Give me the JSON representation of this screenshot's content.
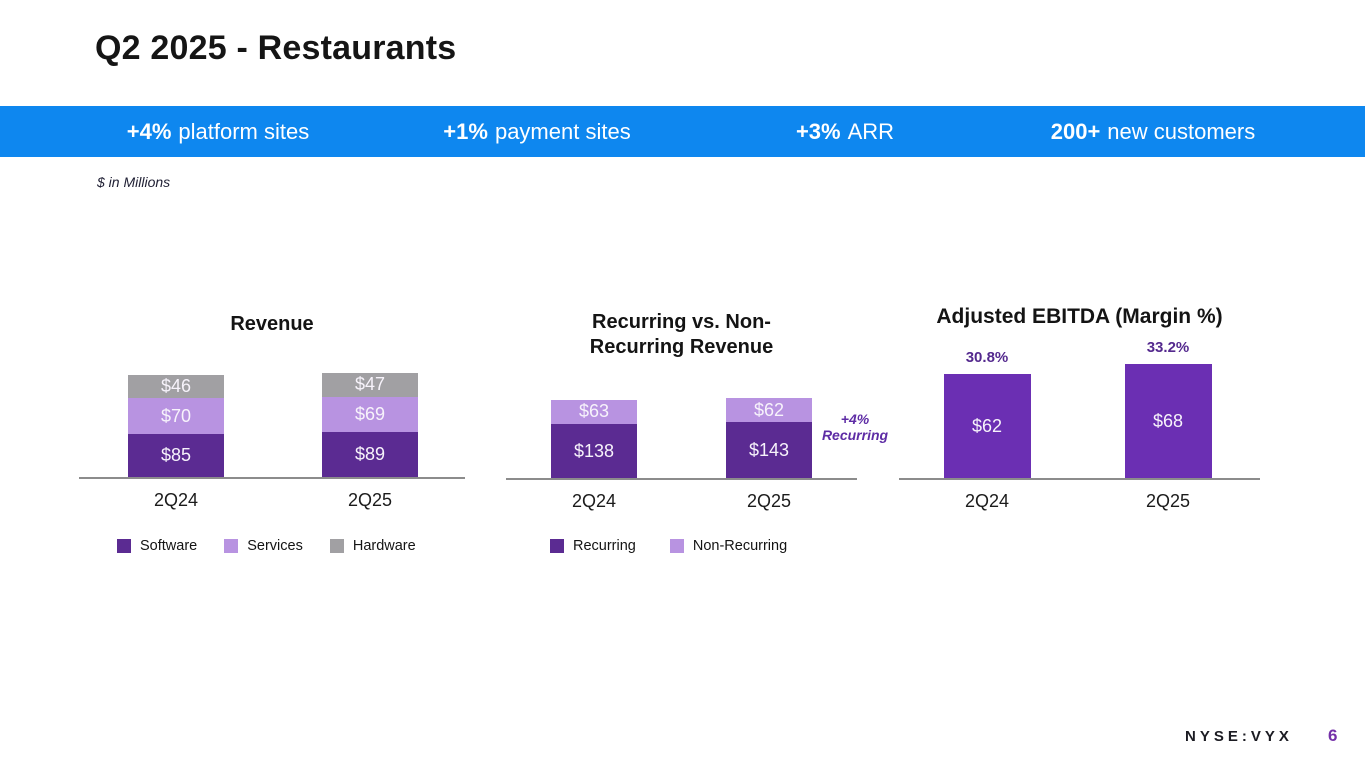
{
  "slide": {
    "title": "Q2 2025 - Restaurants",
    "units_note": "$ in Millions",
    "footer": {
      "ticker": "NYSE:VYX",
      "page_number": "6"
    }
  },
  "banner": {
    "items": [
      {
        "value": "+4%",
        "label": "platform sites"
      },
      {
        "value": "+1%",
        "label": "payment sites"
      },
      {
        "value": "+3%",
        "label": "ARR"
      },
      {
        "value": "200+",
        "label": "new customers"
      }
    ]
  },
  "colors": {
    "banner_blue": "#0E87EF",
    "dark_purple": "#5B2B92",
    "light_purple": "#B893E1",
    "gray": "#A1A0A3",
    "ebitda_purple": "#6B2FB3",
    "annotation_purple": "#5E2CA5",
    "margin_label_purple": "#54298E",
    "page_number_purple": "#7430A8"
  },
  "chart_data": [
    {
      "type": "bar",
      "stacked": true,
      "title": "Revenue",
      "categories": [
        "2Q24",
        "2Q25"
      ],
      "series": [
        {
          "name": "Software",
          "values": [
            85,
            89
          ],
          "labels": [
            "$85",
            "$89"
          ],
          "color": "#5B2B92"
        },
        {
          "name": "Services",
          "values": [
            70,
            69
          ],
          "labels": [
            "$70",
            "$69"
          ],
          "color": "#B893E1"
        },
        {
          "name": "Hardware",
          "values": [
            46,
            47
          ],
          "labels": [
            "$46",
            "$47"
          ],
          "color": "#A1A0A3"
        }
      ],
      "legend_position": "below"
    },
    {
      "type": "bar",
      "stacked": true,
      "title": "Recurring vs. Non-Recurring Revenue",
      "title_lines": [
        "Recurring vs. Non-",
        "Recurring Revenue"
      ],
      "categories": [
        "2Q24",
        "2Q25"
      ],
      "series": [
        {
          "name": "Recurring",
          "values": [
            138,
            143
          ],
          "labels": [
            "$138",
            "$143"
          ],
          "color": "#5B2B92"
        },
        {
          "name": "Non-Recurring",
          "values": [
            63,
            62
          ],
          "labels": [
            "$63",
            "$62"
          ],
          "color": "#B893E1"
        }
      ],
      "annotation": {
        "lines": [
          "+4%",
          "Recurring"
        ]
      },
      "legend_position": "below"
    },
    {
      "type": "bar",
      "stacked": false,
      "title": "Adjusted EBITDA (Margin %)",
      "categories": [
        "2Q24",
        "2Q25"
      ],
      "values": [
        62,
        68
      ],
      "bar_labels": [
        "$62",
        "$68"
      ],
      "margin_labels": [
        "30.8%",
        "33.2%"
      ],
      "color": "#6B2FB3"
    }
  ]
}
